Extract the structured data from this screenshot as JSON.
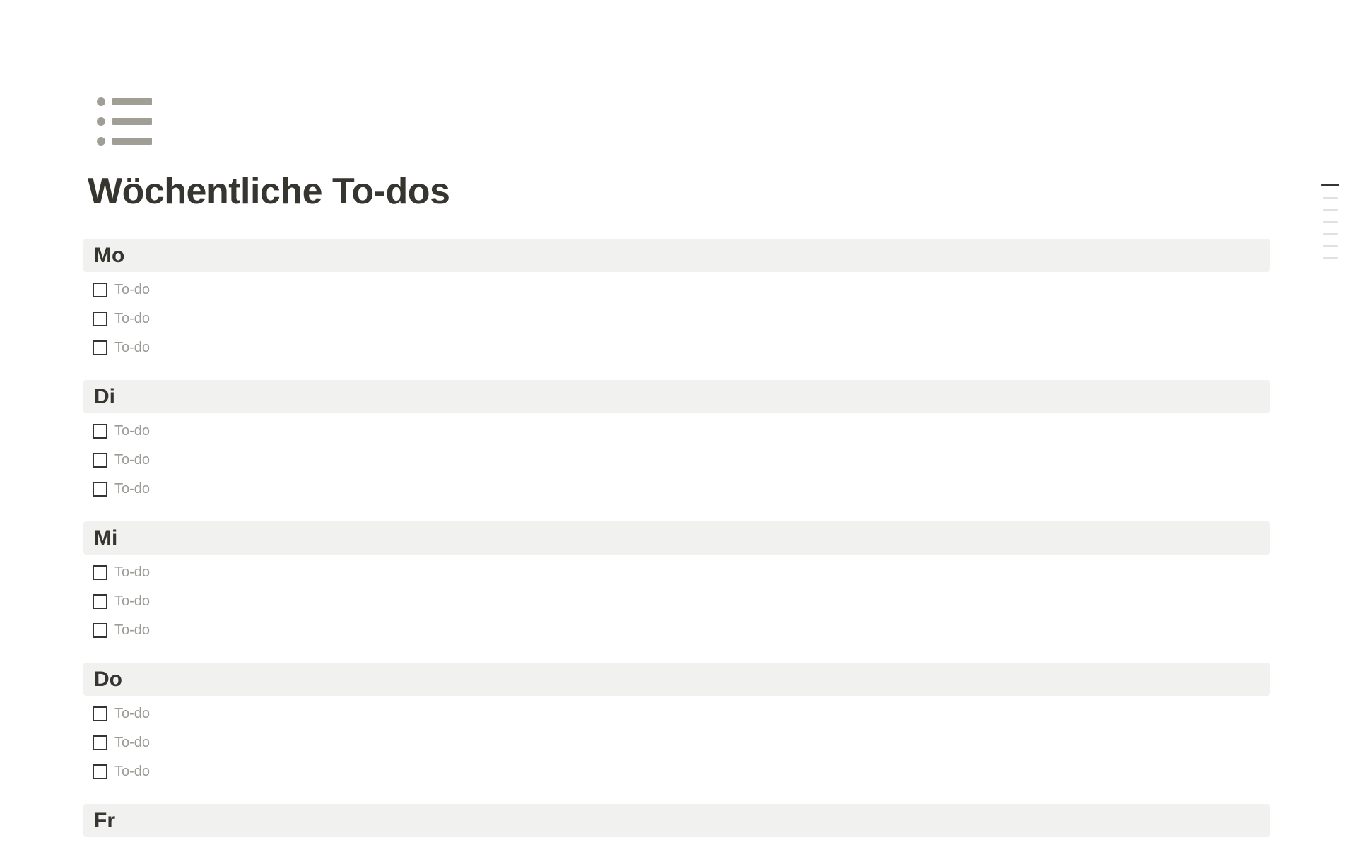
{
  "page": {
    "icon": "bulleted-list",
    "title": "Wöchentliche To-dos"
  },
  "sections": [
    {
      "label": "Mo",
      "todos": [
        {
          "label": "To-do",
          "checked": false
        },
        {
          "label": "To-do",
          "checked": false
        },
        {
          "label": "To-do",
          "checked": false
        }
      ]
    },
    {
      "label": "Di",
      "todos": [
        {
          "label": "To-do",
          "checked": false
        },
        {
          "label": "To-do",
          "checked": false
        },
        {
          "label": "To-do",
          "checked": false
        }
      ]
    },
    {
      "label": "Mi",
      "todos": [
        {
          "label": "To-do",
          "checked": false
        },
        {
          "label": "To-do",
          "checked": false
        },
        {
          "label": "To-do",
          "checked": false
        }
      ]
    },
    {
      "label": "Do",
      "todos": [
        {
          "label": "To-do",
          "checked": false
        },
        {
          "label": "To-do",
          "checked": false
        },
        {
          "label": "To-do",
          "checked": false
        }
      ]
    },
    {
      "label": "Fr",
      "todos": []
    }
  ],
  "outline": {
    "items": [
      {
        "active": true
      },
      {
        "active": false
      },
      {
        "active": false
      },
      {
        "active": false
      },
      {
        "active": false
      },
      {
        "active": false
      },
      {
        "active": false
      }
    ]
  },
  "colors": {
    "text_primary": "#37352F",
    "text_muted": "#9B9A95",
    "heading_bg": "#F1F1EF",
    "icon_gray": "#A19E96",
    "outline_active": "#37352F",
    "outline_inactive": "#E1E0DD"
  }
}
